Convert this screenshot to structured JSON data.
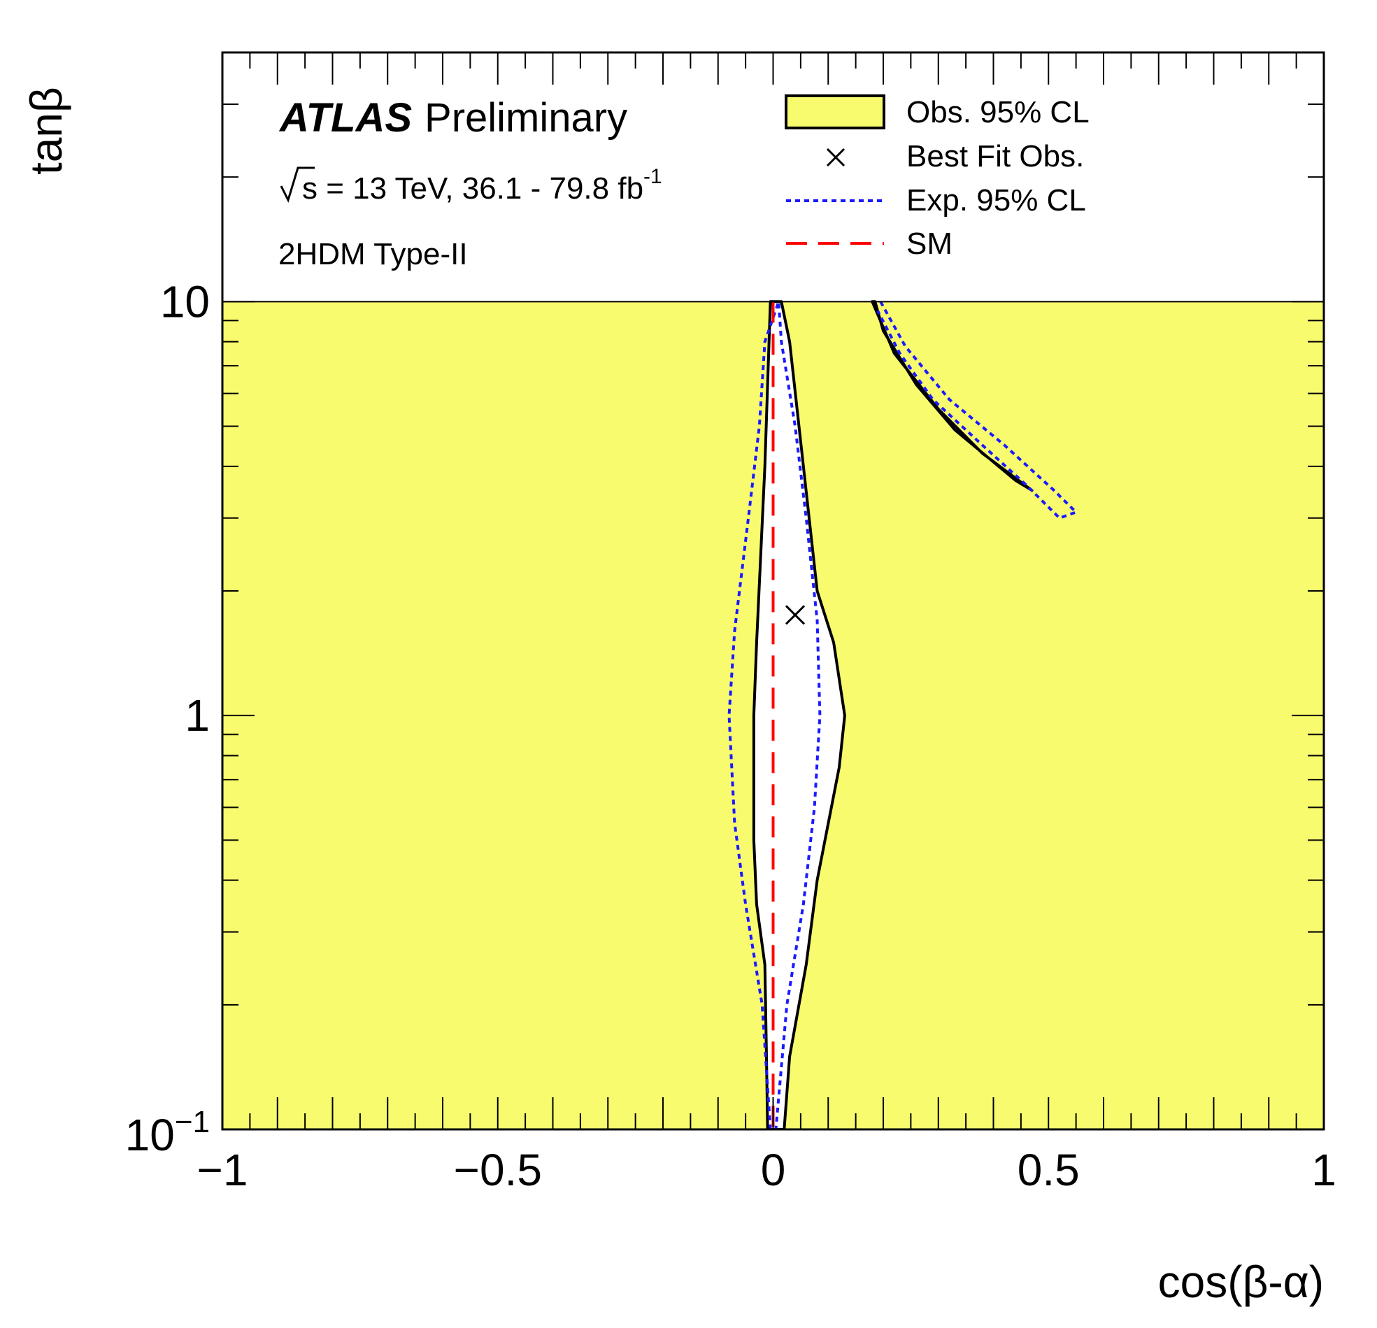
{
  "chart_data": {
    "type": "contour",
    "title": "",
    "xlabel": "cos(β-α)",
    "ylabel": "tanβ",
    "xlim": [
      -1,
      1
    ],
    "ylim": [
      0.1,
      40
    ],
    "yscale": "log",
    "x_tick_labels": [
      {
        "value": -1,
        "label": "−1"
      },
      {
        "value": -0.5,
        "label": "−0.5"
      },
      {
        "value": 0,
        "label": "0"
      },
      {
        "value": 0.5,
        "label": "0.5"
      },
      {
        "value": 1,
        "label": "1"
      }
    ],
    "y_tick_labels": [
      {
        "value": 0.1,
        "label": "10",
        "exponent": "−1"
      },
      {
        "value": 1,
        "label": "1",
        "exponent": ""
      },
      {
        "value": 10,
        "label": "10",
        "exponent": ""
      }
    ],
    "annotations": {
      "experiment": "ATLAS",
      "status": "Preliminary",
      "energy_prefix": "s = 13 TeV, 36.1 - 79.8 fb",
      "energy_exponent": "-1",
      "model": "2HDM Type-II"
    },
    "legend": {
      "position": "top-right",
      "entries": [
        {
          "label": "Obs. 95% CL",
          "style": "filled-box"
        },
        {
          "label": "Best Fit Obs.",
          "style": "marker-x"
        },
        {
          "label": "Exp. 95% CL",
          "style": "blue-dotted"
        },
        {
          "label": "SM",
          "style": "red-dashed"
        }
      ]
    },
    "colors": {
      "excluded_fill": "#f9fb6f",
      "observed_line": "#000000",
      "expected_line": "#1a1aff",
      "sm_line": "#ff0000"
    },
    "excluded_region": {
      "tanb_min": 0.1,
      "tanb_max": 10
    },
    "best_fit": {
      "x": 0.04,
      "y": 1.75
    },
    "sm_line": {
      "x": 0.0,
      "y_range": [
        0.1,
        10
      ]
    },
    "observed_central_allowed": [
      [
        -0.01,
        0.1
      ],
      [
        -0.012,
        0.15
      ],
      [
        -0.015,
        0.25
      ],
      [
        -0.03,
        0.35
      ],
      [
        -0.035,
        0.5
      ],
      [
        -0.035,
        1.0
      ],
      [
        -0.03,
        1.5
      ],
      [
        -0.015,
        4.0
      ],
      [
        -0.005,
        10
      ],
      [
        0.015,
        10
      ],
      [
        0.03,
        8.0
      ],
      [
        0.055,
        4.0
      ],
      [
        0.08,
        2.0
      ],
      [
        0.11,
        1.5
      ],
      [
        0.13,
        1.0
      ],
      [
        0.12,
        0.75
      ],
      [
        0.08,
        0.4
      ],
      [
        0.06,
        0.25
      ],
      [
        0.03,
        0.15
      ],
      [
        0.02,
        0.1
      ]
    ],
    "observed_upper_band": [
      [
        0.18,
        10
      ],
      [
        0.22,
        7.5
      ],
      [
        0.3,
        5.5
      ],
      [
        0.38,
        4.3
      ],
      [
        0.47,
        3.5
      ],
      [
        0.44,
        3.7
      ],
      [
        0.33,
        4.9
      ],
      [
        0.26,
        6.3
      ],
      [
        0.2,
        8.5
      ],
      [
        0.185,
        10
      ]
    ],
    "expected_central": [
      [
        -0.005,
        0.1
      ],
      [
        -0.02,
        0.2
      ],
      [
        -0.05,
        0.35
      ],
      [
        -0.07,
        0.55
      ],
      [
        -0.08,
        1.0
      ],
      [
        -0.07,
        1.6
      ],
      [
        -0.045,
        3.0
      ],
      [
        -0.025,
        5.0
      ],
      [
        -0.015,
        8.0
      ],
      [
        0.01,
        10
      ],
      [
        0.015,
        8.0
      ],
      [
        0.04,
        5.0
      ],
      [
        0.06,
        3.0
      ],
      [
        0.08,
        1.7
      ],
      [
        0.085,
        1.0
      ],
      [
        0.075,
        0.6
      ],
      [
        0.055,
        0.35
      ],
      [
        0.025,
        0.2
      ],
      [
        0.005,
        0.1
      ]
    ],
    "expected_upper_band": [
      [
        0.195,
        10
      ],
      [
        0.24,
        7.8
      ],
      [
        0.32,
        5.8
      ],
      [
        0.42,
        4.5
      ],
      [
        0.51,
        3.5
      ],
      [
        0.55,
        3.1
      ],
      [
        0.52,
        3.0
      ],
      [
        0.46,
        3.6
      ],
      [
        0.38,
        4.5
      ],
      [
        0.29,
        5.8
      ],
      [
        0.23,
        7.5
      ],
      [
        0.19,
        9.5
      ]
    ]
  }
}
